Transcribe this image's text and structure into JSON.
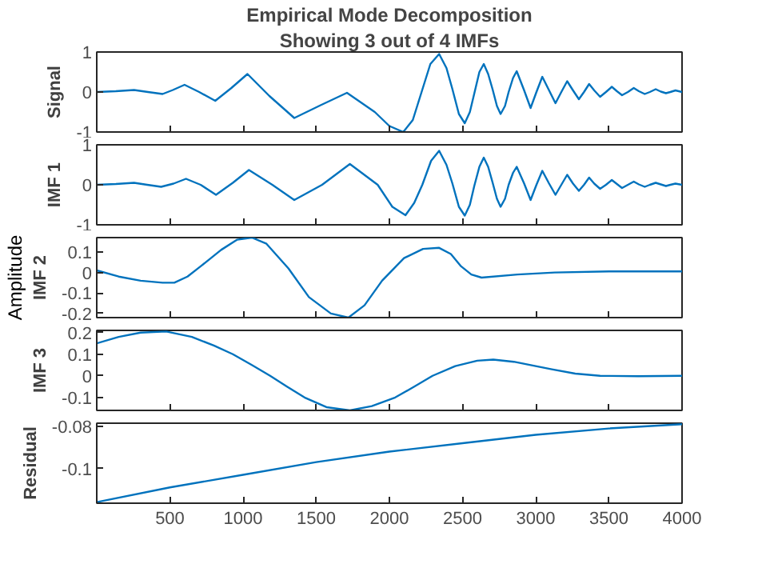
{
  "chart_data": [
    {
      "type": "line",
      "title": "Empirical Mode Decomposition",
      "subtitle": "Showing 3 out of 4 IMFs",
      "ylabel": "Signal",
      "color": "#0072bd",
      "grid": false,
      "tick_labels": "y",
      "xlim": [
        0,
        4000
      ],
      "xticks": [
        500,
        1000,
        1500,
        2000,
        2500,
        3000,
        3500,
        4000
      ],
      "ylim": [
        -1,
        1
      ],
      "yticks": [
        -1,
        0,
        1
      ],
      "x": [
        0,
        130,
        255,
        350,
        450,
        520,
        600,
        700,
        810,
        920,
        1030,
        1180,
        1350,
        1530,
        1710,
        1900,
        2000,
        2095,
        2160,
        2220,
        2280,
        2340,
        2390,
        2430,
        2475,
        2515,
        2550,
        2580,
        2615,
        2645,
        2675,
        2705,
        2735,
        2760,
        2790,
        2815,
        2845,
        2870,
        2920,
        2965,
        3005,
        3045,
        3090,
        3135,
        3175,
        3215,
        3255,
        3295,
        3330,
        3365,
        3400,
        3440,
        3480,
        3520,
        3555,
        3590,
        3630,
        3670,
        3705,
        3745,
        3780,
        3820,
        3855,
        3890,
        3920,
        3955,
        4000
      ],
      "values": [
        0,
        0.02,
        0.05,
        0,
        -0.05,
        0.05,
        0.18,
        0,
        -0.22,
        0.1,
        0.45,
        -0.1,
        -0.65,
        -0.33,
        -0.02,
        -0.5,
        -0.85,
        -1,
        -0.7,
        0,
        0.7,
        0.95,
        0.6,
        0.08,
        -0.55,
        -0.78,
        -0.5,
        -0.04,
        0.5,
        0.7,
        0.45,
        0.07,
        -0.35,
        -0.55,
        -0.35,
        0,
        0.35,
        0.52,
        0.05,
        -0.4,
        0,
        0.38,
        0.05,
        -0.28,
        0,
        0.27,
        0.04,
        -0.18,
        0,
        0.2,
        0.04,
        -0.12,
        0,
        0.13,
        0.02,
        -0.08,
        0,
        0.1,
        0.02,
        -0.05,
        0,
        0.07,
        0.01,
        -0.03,
        0,
        0.04,
        0
      ]
    },
    {
      "type": "line",
      "ylabel": "IMF 1",
      "color": "#0072bd",
      "grid": false,
      "tick_labels": "y",
      "xlim": [
        0,
        4000
      ],
      "xticks": [
        500,
        1000,
        1500,
        2000,
        2500,
        3000,
        3500,
        4000
      ],
      "ylim": [
        -1,
        1
      ],
      "yticks": [
        -1,
        0,
        1
      ],
      "x": [
        0,
        130,
        255,
        345,
        440,
        525,
        610,
        710,
        815,
        930,
        1040,
        1200,
        1350,
        1540,
        1730,
        1920,
        2020,
        2110,
        2170,
        2225,
        2285,
        2340,
        2390,
        2430,
        2475,
        2515,
        2550,
        2580,
        2615,
        2645,
        2675,
        2705,
        2735,
        2760,
        2790,
        2815,
        2845,
        2870,
        2920,
        2965,
        3005,
        3045,
        3090,
        3135,
        3175,
        3215,
        3255,
        3295,
        3330,
        3365,
        3400,
        3440,
        3480,
        3520,
        3555,
        3590,
        3630,
        3670,
        3705,
        3745,
        3780,
        3820,
        3855,
        3890,
        3920,
        3955,
        4000
      ],
      "values": [
        0,
        0.02,
        0.05,
        0,
        -0.05,
        0.03,
        0.15,
        0,
        -0.25,
        0.05,
        0.37,
        0,
        -0.38,
        0,
        0.52,
        0,
        -0.55,
        -0.76,
        -0.45,
        0,
        0.6,
        0.85,
        0.5,
        0.04,
        -0.55,
        -0.77,
        -0.5,
        -0.03,
        0.45,
        0.68,
        0.45,
        0.06,
        -0.35,
        -0.55,
        -0.35,
        0,
        0.3,
        0.45,
        0.04,
        -0.38,
        0,
        0.35,
        0.04,
        -0.25,
        0,
        0.25,
        0.03,
        -0.15,
        0,
        0.18,
        0.03,
        -0.1,
        0,
        0.12,
        0.02,
        -0.08,
        0,
        0.08,
        0.01,
        -0.05,
        0,
        0.05,
        0.01,
        -0.03,
        0,
        0.03,
        0
      ]
    },
    {
      "type": "line",
      "ylabel": "IMF 2",
      "annotations": [
        "Amplitude"
      ],
      "color": "#0072bd",
      "grid": false,
      "tick_labels": "y",
      "xlim": [
        0,
        4000
      ],
      "xticks": [
        500,
        1000,
        1500,
        2000,
        2500,
        3000,
        3500,
        4000
      ],
      "ylim": [
        -0.22,
        0.17
      ],
      "yticks": [
        -0.2,
        -0.1,
        0,
        0.1
      ],
      "x": [
        0,
        150,
        300,
        450,
        530,
        620,
        710,
        850,
        960,
        1060,
        1160,
        1310,
        1450,
        1600,
        1720,
        1830,
        1950,
        2100,
        2230,
        2340,
        2420,
        2490,
        2560,
        2630,
        2875,
        3130,
        3500,
        4000
      ],
      "values": [
        0.01,
        -0.02,
        -0.04,
        -0.05,
        -0.05,
        -0.02,
        0.03,
        0.11,
        0.16,
        0.17,
        0.14,
        0.02,
        -0.12,
        -0.2,
        -0.22,
        -0.16,
        -0.04,
        0.07,
        0.115,
        0.12,
        0.09,
        0.03,
        -0.01,
        -0.025,
        -0.01,
        0,
        0.005,
        0.005
      ]
    },
    {
      "type": "line",
      "ylabel": "IMF 3",
      "color": "#0072bd",
      "grid": false,
      "tick_labels": "y",
      "xlim": [
        0,
        4000
      ],
      "xticks": [
        500,
        1000,
        1500,
        2000,
        2500,
        3000,
        3500,
        4000
      ],
      "ylim": [
        -0.16,
        0.21
      ],
      "yticks": [
        -0.1,
        0,
        0.1,
        0.2
      ],
      "x": [
        0,
        150,
        300,
        475,
        650,
        800,
        930,
        1060,
        1185,
        1300,
        1420,
        1570,
        1730,
        1880,
        2040,
        2170,
        2295,
        2450,
        2600,
        2710,
        2850,
        3000,
        3110,
        3270,
        3440,
        3700,
        4000
      ],
      "values": [
        0.15,
        0.18,
        0.2,
        0.205,
        0.18,
        0.14,
        0.1,
        0.05,
        0,
        -0.05,
        -0.1,
        -0.145,
        -0.16,
        -0.14,
        -0.1,
        -0.05,
        0,
        0.045,
        0.07,
        0.075,
        0.065,
        0.045,
        0.03,
        0.01,
        0,
        -0.002,
        0
      ]
    },
    {
      "type": "line",
      "ylabel": "Residual",
      "color": "#0072bd",
      "grid": false,
      "xlim": [
        0,
        4000
      ],
      "xticks": [
        500,
        1000,
        1500,
        2000,
        2500,
        3000,
        3500,
        4000
      ],
      "ylim": [
        -0.1165,
        -0.0785
      ],
      "yticks": [
        -0.1,
        -0.08
      ],
      "x": [
        0,
        500,
        1000,
        1500,
        2000,
        2500,
        3000,
        3500,
        4000
      ],
      "values": [
        -0.116,
        -0.109,
        -0.103,
        -0.097,
        -0.092,
        -0.088,
        -0.084,
        -0.081,
        -0.079
      ]
    }
  ]
}
